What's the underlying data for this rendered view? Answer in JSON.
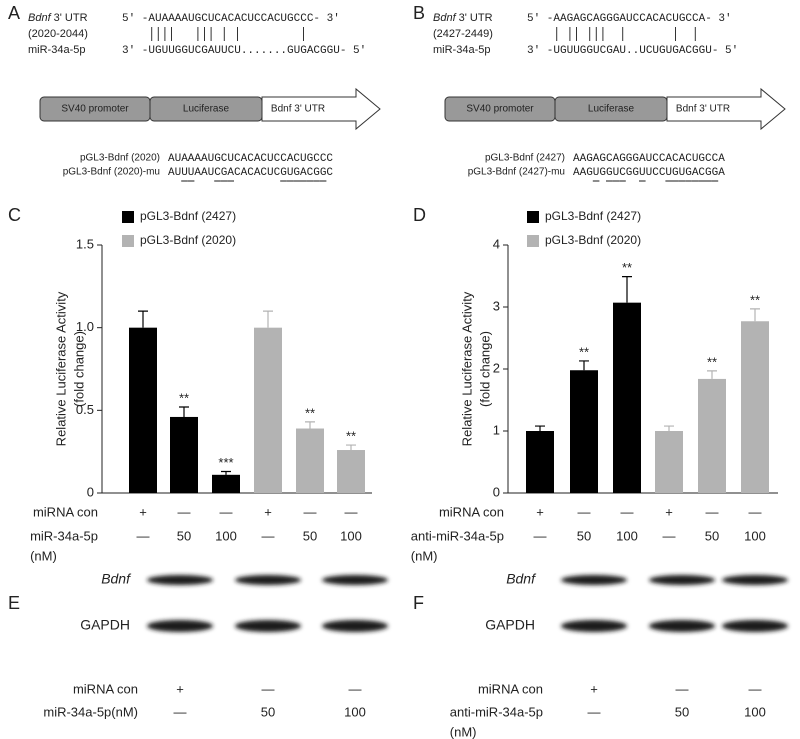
{
  "panel_a": {
    "label": "A",
    "gene": "Bdnf",
    "utr": "3' UTR",
    "range": "(2020-2044)",
    "utr_seq": "5' -AUAAAAUGCUCACACUCCACUGCCC- 3'",
    "mirna": "miR-34a-5p",
    "mirna_seq": "3' -UGUUGGUCGAUUCU.......GUGACGGU- 5'",
    "construct": [
      "SV40 promoter",
      "Luciferase",
      "Bdnf 3' UTR"
    ],
    "reporters": [
      {
        "name": "pGL3-Bdnf (2020)",
        "seq": "AUAAAAUGCUCACACUCCACUGCCC"
      },
      {
        "name": "pGL3-Bdnf (2020)-mu",
        "seq": "AUUUAAUCGACACACUCGUGACGGC"
      }
    ]
  },
  "panel_b": {
    "label": "B",
    "gene": "Bdnf",
    "utr": "3' UTR",
    "range": "(2427-2449)",
    "utr_seq": "5' -AAGAGCAGGGAUCCACACUGCCA- 3'",
    "mirna": "miR-34a-5p",
    "mirna_seq": "3' -UGUUGGUCGAU..UCUGUGACGGU- 5'",
    "construct": [
      "SV40 promoter",
      "Luciferase",
      "Bdnf 3' UTR"
    ],
    "reporters": [
      {
        "name": "pGL3-Bdnf (2427)",
        "seq": "AAGAGCAGGGAUCCACACUGCCA"
      },
      {
        "name": "pGL3-Bdnf (2427)-mu",
        "seq": "AAGUGGUCGGUUCCUGUGACGGA"
      }
    ]
  },
  "chart_data": [
    {
      "type": "bar",
      "label": "C",
      "ylabel": [
        "Relative Luciferase Activity",
        "(fold change)"
      ],
      "ylim": [
        0,
        1.5
      ],
      "yticks": [
        0,
        0.5,
        {
          "value": 1,
          "label": "1.0"
        },
        1.5
      ],
      "series": [
        {
          "name": "pGL3-Bdnf (2427)",
          "color": "#000000",
          "values": [
            1.0,
            0.46,
            0.11
          ],
          "errors": [
            0.1,
            0.06,
            0.02
          ],
          "annotations": [
            null,
            "**",
            "***"
          ]
        },
        {
          "name": "pGL3-Bdnf (2020)",
          "color": "#b3b3b3",
          "values": [
            1.0,
            0.39,
            0.26
          ],
          "errors": [
            0.1,
            0.04,
            0.03
          ],
          "annotations": [
            null,
            "**",
            "**"
          ]
        }
      ],
      "conditions": [
        {
          "name": [
            "miRNA con"
          ],
          "values": [
            "+",
            "—",
            "—",
            "+",
            "—",
            "—"
          ]
        },
        {
          "name": [
            "miR-34a-5p",
            "(nM)"
          ],
          "values": [
            "—",
            "50",
            "100",
            "—",
            "50",
            "100"
          ]
        }
      ]
    },
    {
      "type": "bar",
      "label": "D",
      "ylabel": [
        "Relative Luciferase Activity",
        "(fold change)"
      ],
      "ylim": [
        0,
        4
      ],
      "yticks": [
        0,
        1,
        2,
        3,
        4
      ],
      "series": [
        {
          "name": "pGL3-Bdnf (2427)",
          "color": "#000000",
          "values": [
            1.0,
            1.98,
            3.07
          ],
          "errors": [
            0.08,
            0.15,
            0.42
          ],
          "annotations": [
            null,
            "**",
            "**"
          ]
        },
        {
          "name": "pGL3-Bdnf (2020)",
          "color": "#b3b3b3",
          "values": [
            1.0,
            1.84,
            2.77
          ],
          "errors": [
            0.08,
            0.13,
            0.2
          ],
          "annotations": [
            null,
            "**",
            "**"
          ]
        }
      ],
      "conditions": [
        {
          "name": [
            "miRNA con"
          ],
          "values": [
            "+",
            "—",
            "—",
            "+",
            "—",
            "—"
          ]
        },
        {
          "name": [
            "anti-miR-34a-5p",
            "(nM)"
          ],
          "values": [
            "—",
            "50",
            "100",
            "—",
            "50",
            "100"
          ]
        }
      ]
    }
  ],
  "panel_e": {
    "label": "E",
    "bands": [
      "Bdnf",
      "GAPDH"
    ],
    "conditions": [
      {
        "name": [
          "miRNA con"
        ],
        "values": [
          "+",
          "—",
          "—"
        ]
      },
      {
        "name": [
          "miR-34a-5p(nM)"
        ],
        "values": [
          "—",
          "50",
          "100"
        ]
      }
    ]
  },
  "panel_f": {
    "label": "F",
    "bands": [
      "Bdnf",
      "GAPDH"
    ],
    "conditions": [
      {
        "name": [
          "miRNA con"
        ],
        "values": [
          "+",
          "—",
          "—"
        ]
      },
      {
        "name": [
          "anti-miR-34a-5p",
          "(nM)"
        ],
        "values": [
          "—",
          "50",
          "100"
        ]
      }
    ]
  }
}
